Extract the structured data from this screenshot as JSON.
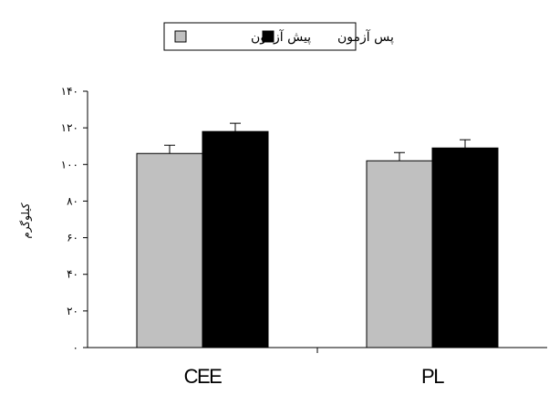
{
  "chart_data": {
    "type": "bar",
    "categories": [
      "CEE",
      "PL"
    ],
    "series": [
      {
        "name": "پیش آزمون",
        "values": [
          106,
          102
        ],
        "error": [
          4.5,
          4.5
        ],
        "color": "#c0c0c0"
      },
      {
        "name": "پس آزمون",
        "values": [
          118,
          109
        ],
        "error": [
          4.5,
          4.5
        ],
        "color": "#000000"
      }
    ],
    "ylabel": "کیلوگرم",
    "ylim": [
      0,
      140
    ],
    "yticks": [
      0,
      20,
      40,
      60,
      80,
      100,
      120,
      140
    ],
    "ytick_labels": [
      "۰",
      "۲۰",
      "۴۰",
      "۶۰",
      "۸۰",
      "۱۰۰",
      "۱۲۰",
      "۱۴۰"
    ],
    "grid": false,
    "legend_position": "top-center"
  }
}
